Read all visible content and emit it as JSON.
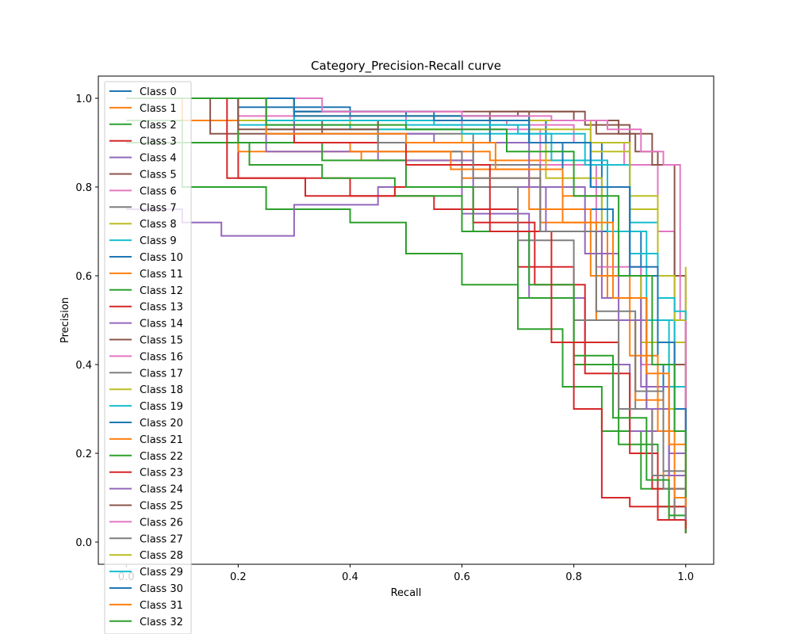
{
  "chart_data": {
    "type": "line",
    "title": "Category_Precision-Recall curve",
    "xlabel": "Recall",
    "ylabel": "Precision",
    "xlim": [
      -0.05,
      1.05
    ],
    "ylim": [
      -0.05,
      1.05
    ],
    "xticks": [
      "0.0",
      "0.2",
      "0.4",
      "0.6",
      "0.8",
      "1.0"
    ],
    "yticks": [
      "0.0",
      "0.2",
      "0.4",
      "0.6",
      "0.8",
      "1.0"
    ],
    "grid": false,
    "legend_position": "upper-left",
    "colors": [
      "#1f77b4",
      "#ff7f0e",
      "#2ca02c",
      "#d62728",
      "#9467bd",
      "#8c564b",
      "#e377c2",
      "#7f7f7f",
      "#bcbd22",
      "#17becf"
    ],
    "series": [
      {
        "name": "Class 0",
        "x": [
          0.0,
          0.05,
          0.2,
          0.4,
          0.6,
          0.75,
          0.85,
          0.92,
          0.96,
          1.0
        ],
        "y": [
          1.0,
          1.0,
          0.98,
          0.96,
          0.95,
          0.9,
          0.7,
          0.4,
          0.15,
          0.02
        ]
      },
      {
        "name": "Class 1",
        "x": [
          0.0,
          0.1,
          0.3,
          0.5,
          0.65,
          0.78,
          0.86,
          0.93,
          0.97,
          1.0
        ],
        "y": [
          1.0,
          0.95,
          0.9,
          0.88,
          0.86,
          0.78,
          0.55,
          0.3,
          0.12,
          0.03
        ]
      },
      {
        "name": "Class 2",
        "x": [
          0.0,
          0.1,
          0.25,
          0.4,
          0.5,
          0.6,
          0.7,
          0.78,
          0.85,
          0.92,
          0.97,
          1.0
        ],
        "y": [
          0.9,
          0.8,
          0.75,
          0.72,
          0.65,
          0.58,
          0.48,
          0.35,
          0.25,
          0.12,
          0.05,
          0.02
        ]
      },
      {
        "name": "Class 3",
        "x": [
          0.0,
          0.2,
          0.4,
          0.55,
          0.7,
          0.8,
          0.88,
          0.94,
          0.98,
          1.0
        ],
        "y": [
          1.0,
          0.82,
          0.78,
          0.75,
          0.62,
          0.45,
          0.3,
          0.12,
          0.05,
          0.02
        ]
      },
      {
        "name": "Class 4",
        "x": [
          0.0,
          0.1,
          0.17,
          0.3,
          0.45,
          0.6,
          0.72,
          0.82,
          0.9,
          0.96,
          1.0
        ],
        "y": [
          0.75,
          0.72,
          0.69,
          0.76,
          0.8,
          0.74,
          0.55,
          0.4,
          0.25,
          0.12,
          0.05
        ]
      },
      {
        "name": "Class 5",
        "x": [
          0.0,
          0.15,
          0.35,
          0.55,
          0.7,
          0.82,
          0.9,
          0.95,
          1.0
        ],
        "y": [
          1.0,
          0.92,
          0.95,
          0.96,
          0.97,
          0.94,
          0.85,
          0.5,
          0.1
        ]
      },
      {
        "name": "Class 6",
        "x": [
          0.0,
          0.2,
          0.4,
          0.6,
          0.74,
          0.84,
          0.92,
          0.97,
          1.0
        ],
        "y": [
          1.0,
          0.96,
          0.95,
          0.93,
          0.85,
          0.62,
          0.4,
          0.2,
          0.08
        ]
      },
      {
        "name": "Class 7",
        "x": [
          0.0,
          0.25,
          0.45,
          0.62,
          0.74,
          0.84,
          0.91,
          0.96,
          1.0
        ],
        "y": [
          1.0,
          0.95,
          0.92,
          0.85,
          0.7,
          0.5,
          0.3,
          0.12,
          0.04
        ]
      },
      {
        "name": "Class 8",
        "x": [
          0.0,
          0.2,
          0.4,
          0.6,
          0.75,
          0.85,
          0.92,
          0.97,
          1.0
        ],
        "y": [
          1.0,
          0.95,
          0.93,
          0.9,
          0.82,
          0.6,
          0.45,
          0.3,
          0.15
        ]
      },
      {
        "name": "Class 9",
        "x": [
          0.0,
          0.2,
          0.4,
          0.6,
          0.76,
          0.86,
          0.93,
          0.97,
          1.0
        ],
        "y": [
          1.0,
          0.94,
          0.93,
          0.92,
          0.86,
          0.7,
          0.5,
          0.35,
          0.2
        ]
      },
      {
        "name": "Class 10",
        "x": [
          0.0,
          0.3,
          0.5,
          0.65,
          0.78,
          0.87,
          0.93,
          0.97,
          1.0
        ],
        "y": [
          1.0,
          0.97,
          0.96,
          0.9,
          0.75,
          0.55,
          0.35,
          0.15,
          0.05
        ]
      },
      {
        "name": "Class 11",
        "x": [
          0.0,
          0.2,
          0.42,
          0.6,
          0.74,
          0.84,
          0.91,
          0.96,
          1.0
        ],
        "y": [
          1.0,
          0.88,
          0.86,
          0.82,
          0.72,
          0.5,
          0.32,
          0.15,
          0.05
        ]
      },
      {
        "name": "Class 12",
        "x": [
          0.0,
          0.1,
          0.22,
          0.35,
          0.48,
          0.6,
          0.7,
          0.8,
          0.88,
          0.95,
          1.0
        ],
        "y": [
          0.95,
          0.9,
          0.85,
          0.82,
          0.78,
          0.7,
          0.55,
          0.4,
          0.22,
          0.08,
          0.03
        ]
      },
      {
        "name": "Class 13",
        "x": [
          0.0,
          0.18,
          0.32,
          0.48,
          0.62,
          0.73,
          0.82,
          0.9,
          0.95,
          1.0
        ],
        "y": [
          1.0,
          0.82,
          0.78,
          0.8,
          0.72,
          0.58,
          0.38,
          0.2,
          0.08,
          0.02
        ]
      },
      {
        "name": "Class 14",
        "x": [
          0.0,
          0.25,
          0.45,
          0.62,
          0.75,
          0.85,
          0.92,
          0.97,
          1.0
        ],
        "y": [
          1.0,
          0.88,
          0.86,
          0.8,
          0.7,
          0.55,
          0.35,
          0.2,
          0.1
        ]
      },
      {
        "name": "Class 15",
        "x": [
          0.0,
          0.3,
          0.55,
          0.72,
          0.84,
          0.91,
          0.95,
          0.98,
          1.0
        ],
        "y": [
          1.0,
          0.97,
          0.97,
          0.95,
          0.92,
          0.88,
          0.7,
          0.4,
          0.15
        ]
      },
      {
        "name": "Class 16",
        "x": [
          0.0,
          0.3,
          0.5,
          0.68,
          0.8,
          0.89,
          0.95,
          0.98,
          1.0
        ],
        "y": [
          1.0,
          0.96,
          0.95,
          0.94,
          0.9,
          0.85,
          0.7,
          0.5,
          0.3
        ]
      },
      {
        "name": "Class 17",
        "x": [
          0.0,
          0.25,
          0.45,
          0.6,
          0.7,
          0.8,
          0.88,
          0.94,
          0.98,
          1.0
        ],
        "y": [
          1.0,
          0.93,
          0.88,
          0.8,
          0.68,
          0.5,
          0.3,
          0.15,
          0.05,
          0.02
        ]
      },
      {
        "name": "Class 18",
        "x": [
          0.0,
          0.3,
          0.55,
          0.72,
          0.83,
          0.9,
          0.95,
          0.98,
          1.0
        ],
        "y": [
          1.0,
          0.96,
          0.96,
          0.95,
          0.9,
          0.75,
          0.55,
          0.45,
          0.35
        ]
      },
      {
        "name": "Class 19",
        "x": [
          0.0,
          0.25,
          0.5,
          0.7,
          0.82,
          0.9,
          0.95,
          0.98,
          1.0
        ],
        "y": [
          1.0,
          0.95,
          0.94,
          0.92,
          0.85,
          0.72,
          0.5,
          0.3,
          0.15
        ]
      },
      {
        "name": "Class 20",
        "x": [
          0.0,
          0.3,
          0.55,
          0.72,
          0.83,
          0.9,
          0.95,
          0.98,
          1.0
        ],
        "y": [
          1.0,
          0.97,
          0.96,
          0.9,
          0.8,
          0.6,
          0.4,
          0.25,
          0.12
        ]
      },
      {
        "name": "Class 21",
        "x": [
          0.0,
          0.2,
          0.4,
          0.58,
          0.72,
          0.83,
          0.9,
          0.95,
          0.98,
          1.0
        ],
        "y": [
          1.0,
          0.9,
          0.88,
          0.84,
          0.75,
          0.6,
          0.42,
          0.25,
          0.1,
          0.03
        ]
      },
      {
        "name": "Class 22",
        "x": [
          0.0,
          0.2,
          0.35,
          0.5,
          0.62,
          0.72,
          0.8,
          0.87,
          0.93,
          0.97,
          1.0
        ],
        "y": [
          1.0,
          0.9,
          0.86,
          0.8,
          0.7,
          0.58,
          0.42,
          0.28,
          0.14,
          0.06,
          0.02
        ]
      },
      {
        "name": "Class 23",
        "x": [
          0.0,
          0.3,
          0.5,
          0.65,
          0.76,
          0.8,
          0.85,
          0.9,
          0.95,
          1.0
        ],
        "y": [
          1.0,
          0.9,
          0.85,
          0.7,
          0.45,
          0.3,
          0.1,
          0.08,
          0.05,
          0.03
        ]
      },
      {
        "name": "Class 24",
        "x": [
          0.0,
          0.3,
          0.55,
          0.72,
          0.82,
          0.88,
          0.93,
          0.97,
          1.0
        ],
        "y": [
          1.0,
          0.92,
          0.9,
          0.8,
          0.65,
          0.5,
          0.3,
          0.15,
          0.05
        ]
      },
      {
        "name": "Class 25",
        "x": [
          0.0,
          0.2,
          0.45,
          0.65,
          0.8,
          0.88,
          0.94,
          0.98,
          1.0
        ],
        "y": [
          1.0,
          0.93,
          0.95,
          0.97,
          0.95,
          0.92,
          0.85,
          0.6,
          0.2
        ]
      },
      {
        "name": "Class 26",
        "x": [
          0.0,
          0.35,
          0.6,
          0.76,
          0.86,
          0.92,
          0.96,
          0.99,
          1.0
        ],
        "y": [
          1.0,
          0.97,
          0.96,
          0.95,
          0.93,
          0.88,
          0.85,
          0.5,
          0.1
        ]
      },
      {
        "name": "Class 27",
        "x": [
          0.0,
          0.25,
          0.45,
          0.62,
          0.74,
          0.84,
          0.91,
          0.96,
          1.0
        ],
        "y": [
          1.0,
          0.92,
          0.9,
          0.82,
          0.7,
          0.52,
          0.34,
          0.16,
          0.06
        ]
      },
      {
        "name": "Class 28",
        "x": [
          0.0,
          0.3,
          0.55,
          0.72,
          0.83,
          0.9,
          0.95,
          0.98,
          1.0
        ],
        "y": [
          1.0,
          0.96,
          0.95,
          0.93,
          0.88,
          0.78,
          0.6,
          0.5,
          0.62
        ]
      },
      {
        "name": "Class 29",
        "x": [
          0.0,
          0.3,
          0.55,
          0.72,
          0.83,
          0.9,
          0.95,
          0.98,
          1.0
        ],
        "y": [
          1.0,
          0.95,
          0.94,
          0.9,
          0.8,
          0.65,
          0.55,
          0.52,
          0.5
        ]
      },
      {
        "name": "Class 30",
        "x": [
          0.0,
          0.3,
          0.55,
          0.72,
          0.83,
          0.9,
          0.95,
          0.98,
          1.0
        ],
        "y": [
          1.0,
          0.96,
          0.95,
          0.9,
          0.8,
          0.62,
          0.45,
          0.3,
          0.2
        ]
      },
      {
        "name": "Class 31",
        "x": [
          0.0,
          0.25,
          0.5,
          0.66,
          0.78,
          0.87,
          0.93,
          0.97,
          1.0
        ],
        "y": [
          1.0,
          0.92,
          0.9,
          0.84,
          0.72,
          0.55,
          0.38,
          0.22,
          0.08
        ]
      },
      {
        "name": "Class 32",
        "x": [
          0.0,
          0.25,
          0.5,
          0.68,
          0.8,
          0.88,
          0.94,
          0.98,
          1.0
        ],
        "y": [
          1.0,
          0.94,
          0.93,
          0.88,
          0.78,
          0.6,
          0.4,
          0.25,
          0.1
        ]
      }
    ]
  }
}
